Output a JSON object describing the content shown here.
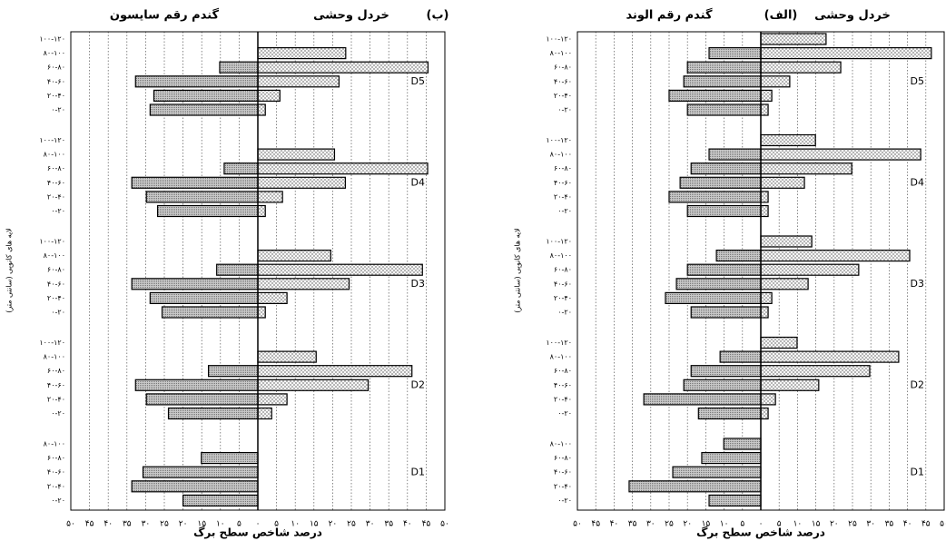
{
  "chart_data": [
    {
      "type": "butterfly-bar",
      "title": "(ب)",
      "series": [
        {
          "name": "خردل وحشی",
          "color": "#8c8c8c"
        },
        {
          "name": "گندم رقم سایسون",
          "color": "#9c9c9c"
        }
      ],
      "groups": [
        {
          "name": "D5",
          "categories": [
            "۱۰۰-۱۲۰",
            "۸۰-۱۰۰",
            "۶۰-۸۰",
            "۴۰-۶۰",
            "۲۰-۴۰",
            "۰-۲۰"
          ],
          "values": [
            [
              0,
              23.5,
              45.5,
              21.7,
              5.9,
              2
            ],
            [
              0,
              0,
              -10.2,
              -32.7,
              -27.8,
              -28.8
            ]
          ]
        },
        {
          "name": "D4",
          "categories": [
            "۱۰۰-۱۲۰",
            "۸۰-۱۰۰",
            "۶۰-۸۰",
            "۴۰-۶۰",
            "۲۰-۴۰",
            "۰-۲۰"
          ],
          "values": [
            [
              0,
              20.5,
              45.4,
              23.4,
              6.6,
              2
            ],
            [
              0,
              0,
              -9,
              -33.7,
              -29.8,
              -26.8
            ]
          ]
        },
        {
          "name": "D3",
          "categories": [
            "۱۰۰-۱۲۰",
            "۸۰-۱۰۰",
            "۶۰-۸۰",
            "۴۰-۶۰",
            "۲۰-۴۰",
            "۰-۲۰"
          ],
          "values": [
            [
              0,
              19.5,
              44,
              24.4,
              7.8,
              2
            ],
            [
              0,
              0,
              -11,
              -33.7,
              -28.8,
              -25.6
            ]
          ]
        },
        {
          "name": "D2",
          "categories": [
            "۱۰۰-۱۲۰",
            "۸۰-۱۰۰",
            "۶۰-۸۰",
            "۴۰-۶۰",
            "۲۰-۴۰",
            "۰-۲۰"
          ],
          "values": [
            [
              0,
              15.6,
              41.2,
              29.5,
              7.8,
              3.7
            ],
            [
              0,
              0,
              -13.2,
              -32.7,
              -29.8,
              -23.9
            ]
          ]
        },
        {
          "name": "D1",
          "categories": [
            "۸۰-۱۰۰",
            "۶۰-۸۰",
            "۴۰-۶۰",
            "۲۰-۴۰",
            "۰-۲۰"
          ],
          "values": [
            [
              null,
              null,
              null,
              null,
              null
            ],
            [
              0,
              -15.1,
              -30.7,
              -33.7,
              -20
            ]
          ]
        }
      ],
      "xlim": [
        -50,
        50
      ],
      "xticks": [
        {
          "value": -50,
          "label": "۵۰"
        },
        {
          "value": -45,
          "label": "۴۵"
        },
        {
          "value": -40,
          "label": "۴۰"
        },
        {
          "value": -35,
          "label": "۳۵"
        },
        {
          "value": -30,
          "label": "۳۰"
        },
        {
          "value": -25,
          "label": "۲۵"
        },
        {
          "value": -20,
          "label": "۲۰"
        },
        {
          "value": -15,
          "label": "۱۵"
        },
        {
          "value": -10,
          "label": "۱۰"
        },
        {
          "value": -5,
          "label": "۵"
        },
        {
          "value": 0,
          "label": "۰"
        },
        {
          "value": 5,
          "label": "۵"
        },
        {
          "value": 10,
          "label": "۱۰"
        },
        {
          "value": 15,
          "label": "۱۵"
        },
        {
          "value": 20,
          "label": "۲۰"
        },
        {
          "value": 25,
          "label": "۲۵"
        },
        {
          "value": 30,
          "label": "۳۰"
        },
        {
          "value": 35,
          "label": "۳۵"
        },
        {
          "value": 40,
          "label": "۴۰"
        },
        {
          "value": 45,
          "label": "۴۵"
        },
        {
          "value": 50,
          "label": "۵۰"
        }
      ],
      "xlabel": "درصد شاخص سطح برگ",
      "ylabel": "لایه های کانوپی (سانتی متر)",
      "grid": true
    },
    {
      "type": "butterfly-bar",
      "title": "(الف)",
      "series": [
        {
          "name": "خردل وحشی",
          "color": "#8c8c8c"
        },
        {
          "name": "گندم رقم الوند",
          "color": "#9c9c9c"
        }
      ],
      "groups": [
        {
          "name": "D5",
          "categories": [
            "۱۰۰-۱۲۰",
            "۸۰-۱۰۰",
            "۶۰-۸۰",
            "۴۰-۶۰",
            "۲۰-۴۰",
            "۰-۲۰"
          ],
          "values": [
            [
              17.8,
              46.5,
              21.8,
              7.9,
              3,
              2
            ],
            [
              0,
              -14.1,
              -20,
              -21,
              -25,
              -20
            ]
          ]
        },
        {
          "name": "D4",
          "categories": [
            "۱۰۰-۱۲۰",
            "۸۰-۱۰۰",
            "۶۰-۸۰",
            "۴۰-۶۰",
            "۲۰-۴۰",
            "۰-۲۰"
          ],
          "values": [
            [
              14.9,
              43.6,
              24.8,
              11.9,
              2,
              2
            ],
            [
              0,
              -14.1,
              -19,
              -22,
              -25,
              -20
            ]
          ]
        },
        {
          "name": "D3",
          "categories": [
            "۱۰۰-۱۲۰",
            "۸۰-۱۰۰",
            "۶۰-۸۰",
            "۴۰-۶۰",
            "۲۰-۴۰",
            "۰-۲۰"
          ],
          "values": [
            [
              13.9,
              40.6,
              26.7,
              12.9,
              3,
              2
            ],
            [
              0,
              -12.1,
              -20,
              -23,
              -26,
              -19
            ]
          ]
        },
        {
          "name": "D2",
          "categories": [
            "۱۰۰-۱۲۰",
            "۸۰-۱۰۰",
            "۶۰-۸۰",
            "۴۰-۶۰",
            "۲۰-۴۰",
            "۰-۲۰"
          ],
          "values": [
            [
              9.9,
              37.6,
              29.7,
              15.8,
              4,
              2
            ],
            [
              0,
              -11.1,
              -19,
              -21,
              -31.9,
              -17
            ]
          ]
        },
        {
          "name": "D1",
          "categories": [
            "۸۰-۱۰۰",
            "۶۰-۸۰",
            "۴۰-۶۰",
            "۲۰-۴۰",
            "۰-۲۰"
          ],
          "values": [
            [
              null,
              null,
              null,
              null,
              null
            ],
            [
              -10.1,
              -16.1,
              -24,
              -35.9,
              -14.1
            ]
          ]
        }
      ],
      "xlim": [
        -50,
        50
      ],
      "xticks": [
        {
          "value": -50,
          "label": "۵۰"
        },
        {
          "value": -45,
          "label": "۴۵"
        },
        {
          "value": -40,
          "label": "۴۰"
        },
        {
          "value": -35,
          "label": "۳۵"
        },
        {
          "value": -30,
          "label": "۳۰"
        },
        {
          "value": -25,
          "label": "۲۵"
        },
        {
          "value": -20,
          "label": "۲۰"
        },
        {
          "value": -15,
          "label": "۱۵"
        },
        {
          "value": -10,
          "label": "۱۰"
        },
        {
          "value": -5,
          "label": "۵"
        },
        {
          "value": 0,
          "label": "۰"
        },
        {
          "value": 5,
          "label": "۵"
        },
        {
          "value": 10,
          "label": "۱۰"
        },
        {
          "value": 15,
          "label": "۱۵"
        },
        {
          "value": 20,
          "label": "۲۰"
        },
        {
          "value": 25,
          "label": "۲۵"
        },
        {
          "value": 30,
          "label": "۳۰"
        },
        {
          "value": 35,
          "label": "۳۵"
        },
        {
          "value": 40,
          "label": "۴۰"
        },
        {
          "value": 45,
          "label": "۴۵"
        },
        {
          "value": 50,
          "label": "۵۰"
        }
      ],
      "xlabel": "درصد شاخص سطح برگ",
      "ylabel": "لایه های کانوپی (سانتی متر)",
      "grid": true
    }
  ]
}
